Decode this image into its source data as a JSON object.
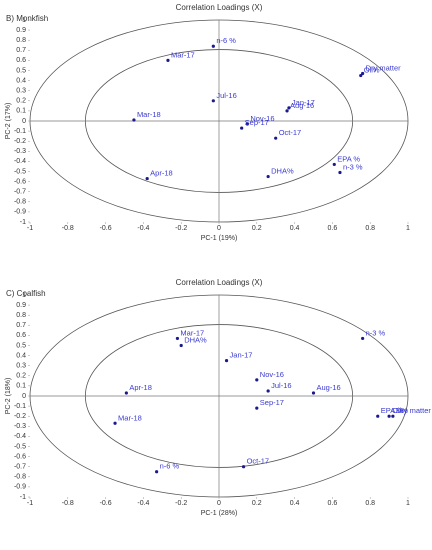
{
  "chart_data": [
    {
      "type": "scatter",
      "title": "Correlation Loadings (X)",
      "subtitle": "B) Monkfish",
      "x_label": "PC-1 (19%)",
      "y_label": "PC-2 (17%)",
      "color": "#1a1a8c",
      "label_color": "#3a3ad0",
      "labels": [
        "n-6 %",
        "Mar-17",
        "Dry matter",
        "Oil%",
        "Jul-16",
        "Jan-17",
        "Aug-16",
        "Mar-18",
        "Nov-16",
        "Sep-17",
        "Oct-17",
        "DHA%",
        "EPA %",
        "n-3 %",
        "Apr-18"
      ],
      "x": [
        -0.03,
        -0.27,
        0.76,
        0.75,
        -0.03,
        0.37,
        0.36,
        -0.45,
        0.15,
        0.12,
        0.3,
        0.26,
        0.61,
        0.64,
        -0.38
      ],
      "values": [
        0.74,
        0.6,
        0.47,
        0.45,
        0.2,
        0.13,
        0.1,
        0.01,
        -0.03,
        -0.07,
        -0.17,
        -0.55,
        -0.43,
        -0.51,
        -0.57
      ],
      "xlim": [
        -1,
        1
      ],
      "ylim": [
        -1,
        1
      ],
      "xticks": [
        -1,
        -0.8,
        -0.6,
        -0.4,
        -0.2,
        0,
        0.2,
        0.4,
        0.6,
        0.8,
        1
      ],
      "yticks": [
        -1,
        -0.9,
        -0.8,
        -0.7,
        -0.6,
        -0.5,
        -0.4,
        -0.3,
        -0.2,
        -0.1,
        0,
        0.1,
        0.2,
        0.3,
        0.4,
        0.5,
        0.6,
        0.7,
        0.8,
        0.9,
        1
      ]
    },
    {
      "type": "scatter",
      "title": "Correlation Loadings (X)",
      "subtitle": "C) Coalfish",
      "x_label": "PC-1 (28%)",
      "y_label": "PC-2 (18%)",
      "color": "#1a1a8c",
      "label_color": "#3a3ad0",
      "labels": [
        "Mar-17",
        "DHA%",
        "n-3 %",
        "Jan-17",
        "Nov-16",
        "Jul-16",
        "Aug-16",
        "Apr-18",
        "Sep-17",
        "Mar-18",
        "EPA %",
        "Oil%",
        "Dry matter",
        "Oct-17",
        "n-6 %"
      ],
      "x": [
        -0.22,
        -0.2,
        0.76,
        0.04,
        0.2,
        0.26,
        0.5,
        -0.49,
        0.2,
        -0.55,
        0.84,
        0.9,
        0.92,
        0.13,
        -0.33
      ],
      "values": [
        0.57,
        0.5,
        0.57,
        0.35,
        0.16,
        0.05,
        0.03,
        0.03,
        -0.12,
        -0.27,
        -0.2,
        -0.2,
        -0.2,
        -0.7,
        -0.75
      ],
      "xlim": [
        -1,
        1
      ],
      "ylim": [
        -1,
        1
      ],
      "xticks": [
        -1,
        -0.8,
        -0.6,
        -0.4,
        -0.2,
        0,
        0.2,
        0.4,
        0.6,
        0.8,
        1
      ],
      "yticks": [
        -1,
        -0.9,
        -0.8,
        -0.7,
        -0.6,
        -0.5,
        -0.4,
        -0.3,
        -0.2,
        -0.1,
        0,
        0.1,
        0.2,
        0.3,
        0.4,
        0.5,
        0.6,
        0.7,
        0.8,
        0.9,
        1
      ]
    }
  ]
}
